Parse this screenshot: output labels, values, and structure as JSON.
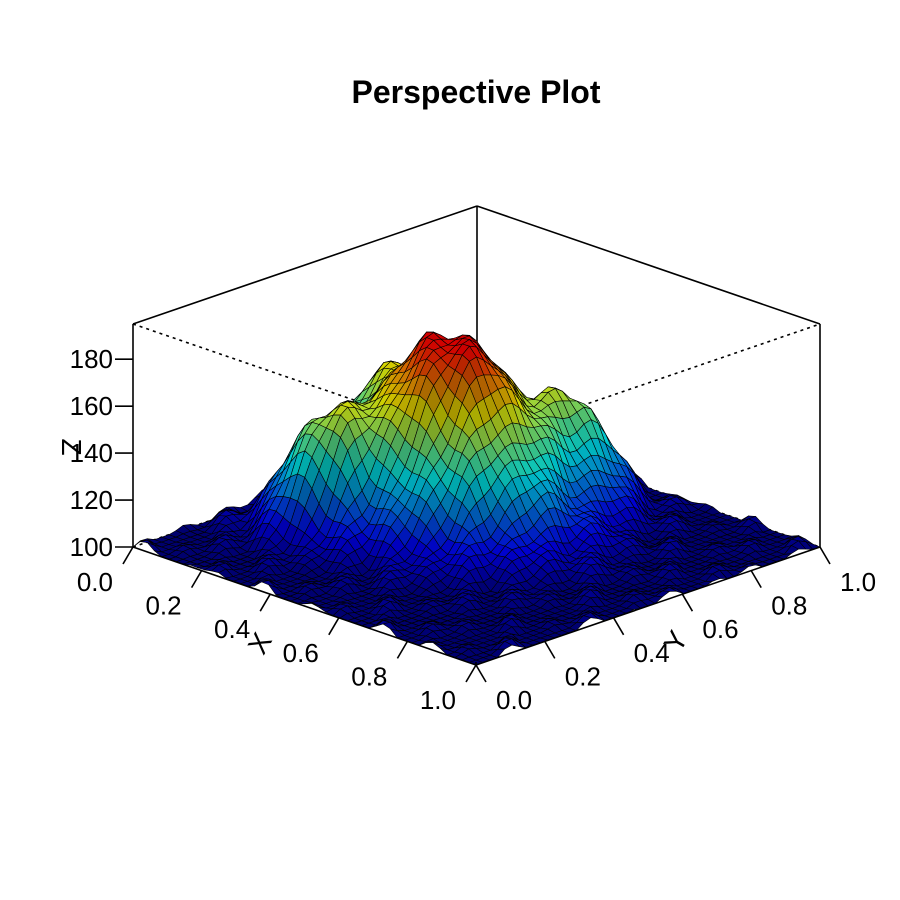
{
  "chart_data": {
    "type": "surface",
    "title": "Perspective Plot",
    "xlabel": "X",
    "ylabel": "Y",
    "zlabel": "Z",
    "xlim": [
      0,
      1
    ],
    "ylim": [
      0,
      1
    ],
    "zlim": [
      100,
      195
    ],
    "x_ticks": [
      "0.0",
      "0.2",
      "0.4",
      "0.6",
      "0.8",
      "1.0"
    ],
    "y_ticks": [
      "0.0",
      "0.2",
      "0.4",
      "0.6",
      "0.8",
      "1.0"
    ],
    "z_ticks": [
      "100",
      "120",
      "140",
      "160",
      "180"
    ],
    "colormap": [
      "#00007f",
      "#0000ff",
      "#007fff",
      "#00ffff",
      "#7fff7f",
      "#ffff00",
      "#ff7f00",
      "#ff0000",
      "#7f0000"
    ],
    "grid": false,
    "surface": {
      "base": 100,
      "peaks": [
        {
          "x": 0.38,
          "y": 0.55,
          "height": 82,
          "spread_x": 0.17,
          "spread_y": 0.14
        },
        {
          "x": 0.22,
          "y": 0.32,
          "height": 38,
          "spread_x": 0.08,
          "spread_y": 0.07
        },
        {
          "x": 0.5,
          "y": 0.8,
          "height": 34,
          "spread_x": 0.08,
          "spread_y": 0.07
        },
        {
          "x": 0.12,
          "y": 0.62,
          "height": 28,
          "spread_x": 0.07,
          "spread_y": 0.08
        }
      ],
      "z_max": 190
    }
  }
}
